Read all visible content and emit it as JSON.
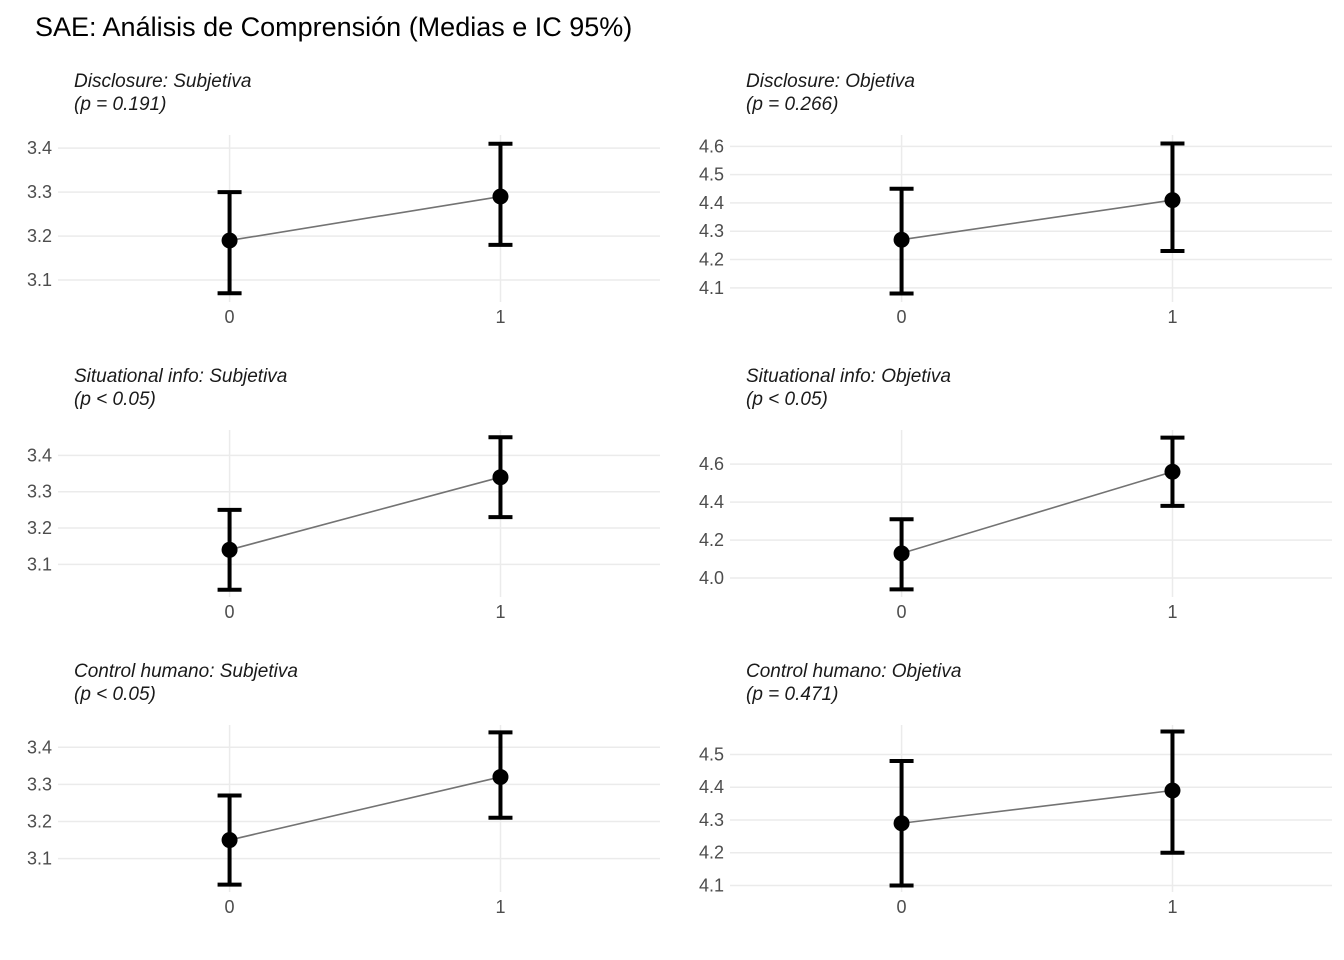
{
  "title": "SAE: Análisis de Comprensión (Medias e IC 95%)",
  "colors": {
    "background": "#ffffff",
    "title_text": "#000000",
    "facet_text": "#1a1a1a",
    "axis_tick_text": "#4d4d4d",
    "gridline": "#ebebeb",
    "connector_line": "#737373",
    "point_and_errorbar": "#000000"
  },
  "chart_data": [
    {
      "type": "line",
      "facet": "Disclosure: Subjetiva",
      "p_label": "(p = 0.191)",
      "categories": [
        "0",
        "1"
      ],
      "means": [
        3.19,
        3.29
      ],
      "ci_low": [
        3.07,
        3.18
      ],
      "ci_high": [
        3.3,
        3.41
      ],
      "yticks": [
        3.1,
        3.2,
        3.3,
        3.4
      ],
      "ylim": [
        3.05,
        3.43
      ],
      "error_bars": "IC 95%",
      "grid": true,
      "legend": false
    },
    {
      "type": "line",
      "facet": "Disclosure: Objetiva",
      "p_label": "(p = 0.266)",
      "categories": [
        "0",
        "1"
      ],
      "means": [
        4.27,
        4.41
      ],
      "ci_low": [
        4.08,
        4.23
      ],
      "ci_high": [
        4.45,
        4.61
      ],
      "yticks": [
        4.1,
        4.2,
        4.3,
        4.4,
        4.5,
        4.6
      ],
      "ylim": [
        4.05,
        4.64
      ],
      "error_bars": "IC 95%",
      "grid": true,
      "legend": false
    },
    {
      "type": "line",
      "facet": "Situational info: Subjetiva",
      "p_label": "(p < 0.05)",
      "categories": [
        "0",
        "1"
      ],
      "means": [
        3.14,
        3.34
      ],
      "ci_low": [
        3.03,
        3.23
      ],
      "ci_high": [
        3.25,
        3.45
      ],
      "yticks": [
        3.1,
        3.2,
        3.3,
        3.4
      ],
      "ylim": [
        3.01,
        3.47
      ],
      "error_bars": "IC 95%",
      "grid": true,
      "legend": false
    },
    {
      "type": "line",
      "facet": "Situational info: Objetiva",
      "p_label": "(p < 0.05)",
      "categories": [
        "0",
        "1"
      ],
      "means": [
        4.13,
        4.56
      ],
      "ci_low": [
        3.94,
        4.38
      ],
      "ci_high": [
        4.31,
        4.74
      ],
      "yticks": [
        4.0,
        4.2,
        4.4,
        4.6
      ],
      "ylim": [
        3.9,
        4.78
      ],
      "error_bars": "IC 95%",
      "grid": true,
      "legend": false
    },
    {
      "type": "line",
      "facet": "Control humano: Subjetiva",
      "p_label": "(p < 0.05)",
      "categories": [
        "0",
        "1"
      ],
      "means": [
        3.15,
        3.32
      ],
      "ci_low": [
        3.03,
        3.21
      ],
      "ci_high": [
        3.27,
        3.44
      ],
      "yticks": [
        3.1,
        3.2,
        3.3,
        3.4
      ],
      "ylim": [
        3.01,
        3.46
      ],
      "error_bars": "IC 95%",
      "grid": true,
      "legend": false
    },
    {
      "type": "line",
      "facet": "Control humano: Objetiva",
      "p_label": "(p = 0.471)",
      "categories": [
        "0",
        "1"
      ],
      "means": [
        4.29,
        4.39
      ],
      "ci_low": [
        4.1,
        4.2
      ],
      "ci_high": [
        4.48,
        4.57
      ],
      "yticks": [
        4.1,
        4.2,
        4.3,
        4.4,
        4.5
      ],
      "ylim": [
        4.08,
        4.59
      ],
      "error_bars": "IC 95%",
      "grid": true,
      "legend": false
    }
  ]
}
